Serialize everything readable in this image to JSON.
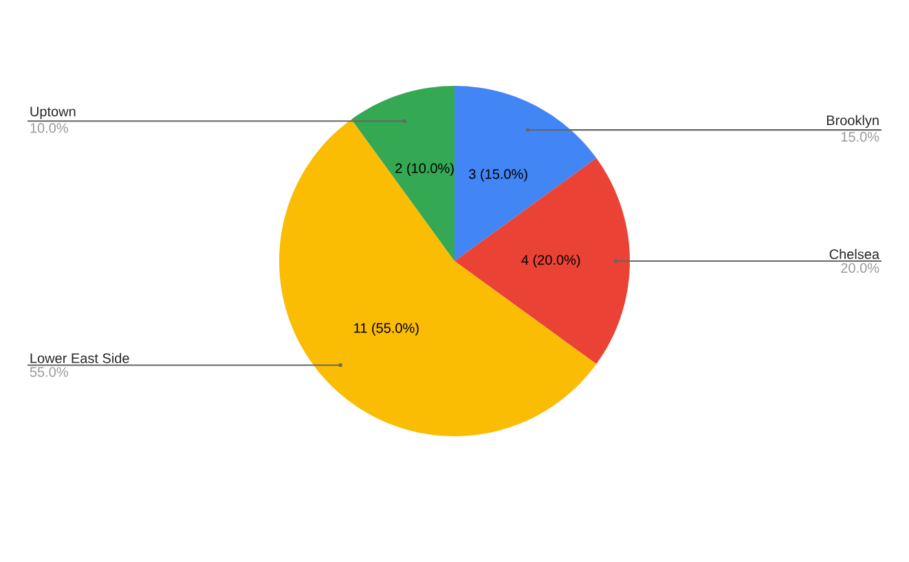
{
  "chart_data": {
    "type": "pie",
    "categories": [
      "Brooklyn",
      "Chelsea",
      "Lower East Side",
      "Uptown"
    ],
    "values": [
      3,
      4,
      11,
      2
    ],
    "colors": [
      "#4285f4",
      "#ea4335",
      "#fbbc04",
      "#34a853"
    ],
    "value_labels": [
      "3 (15.0%)",
      "4 (20.0%)",
      "11 (55.0%)",
      "2 (10.0%)"
    ],
    "annotations": [
      "15.0%",
      "20.0%",
      "55.0%",
      "10.0%"
    ]
  }
}
